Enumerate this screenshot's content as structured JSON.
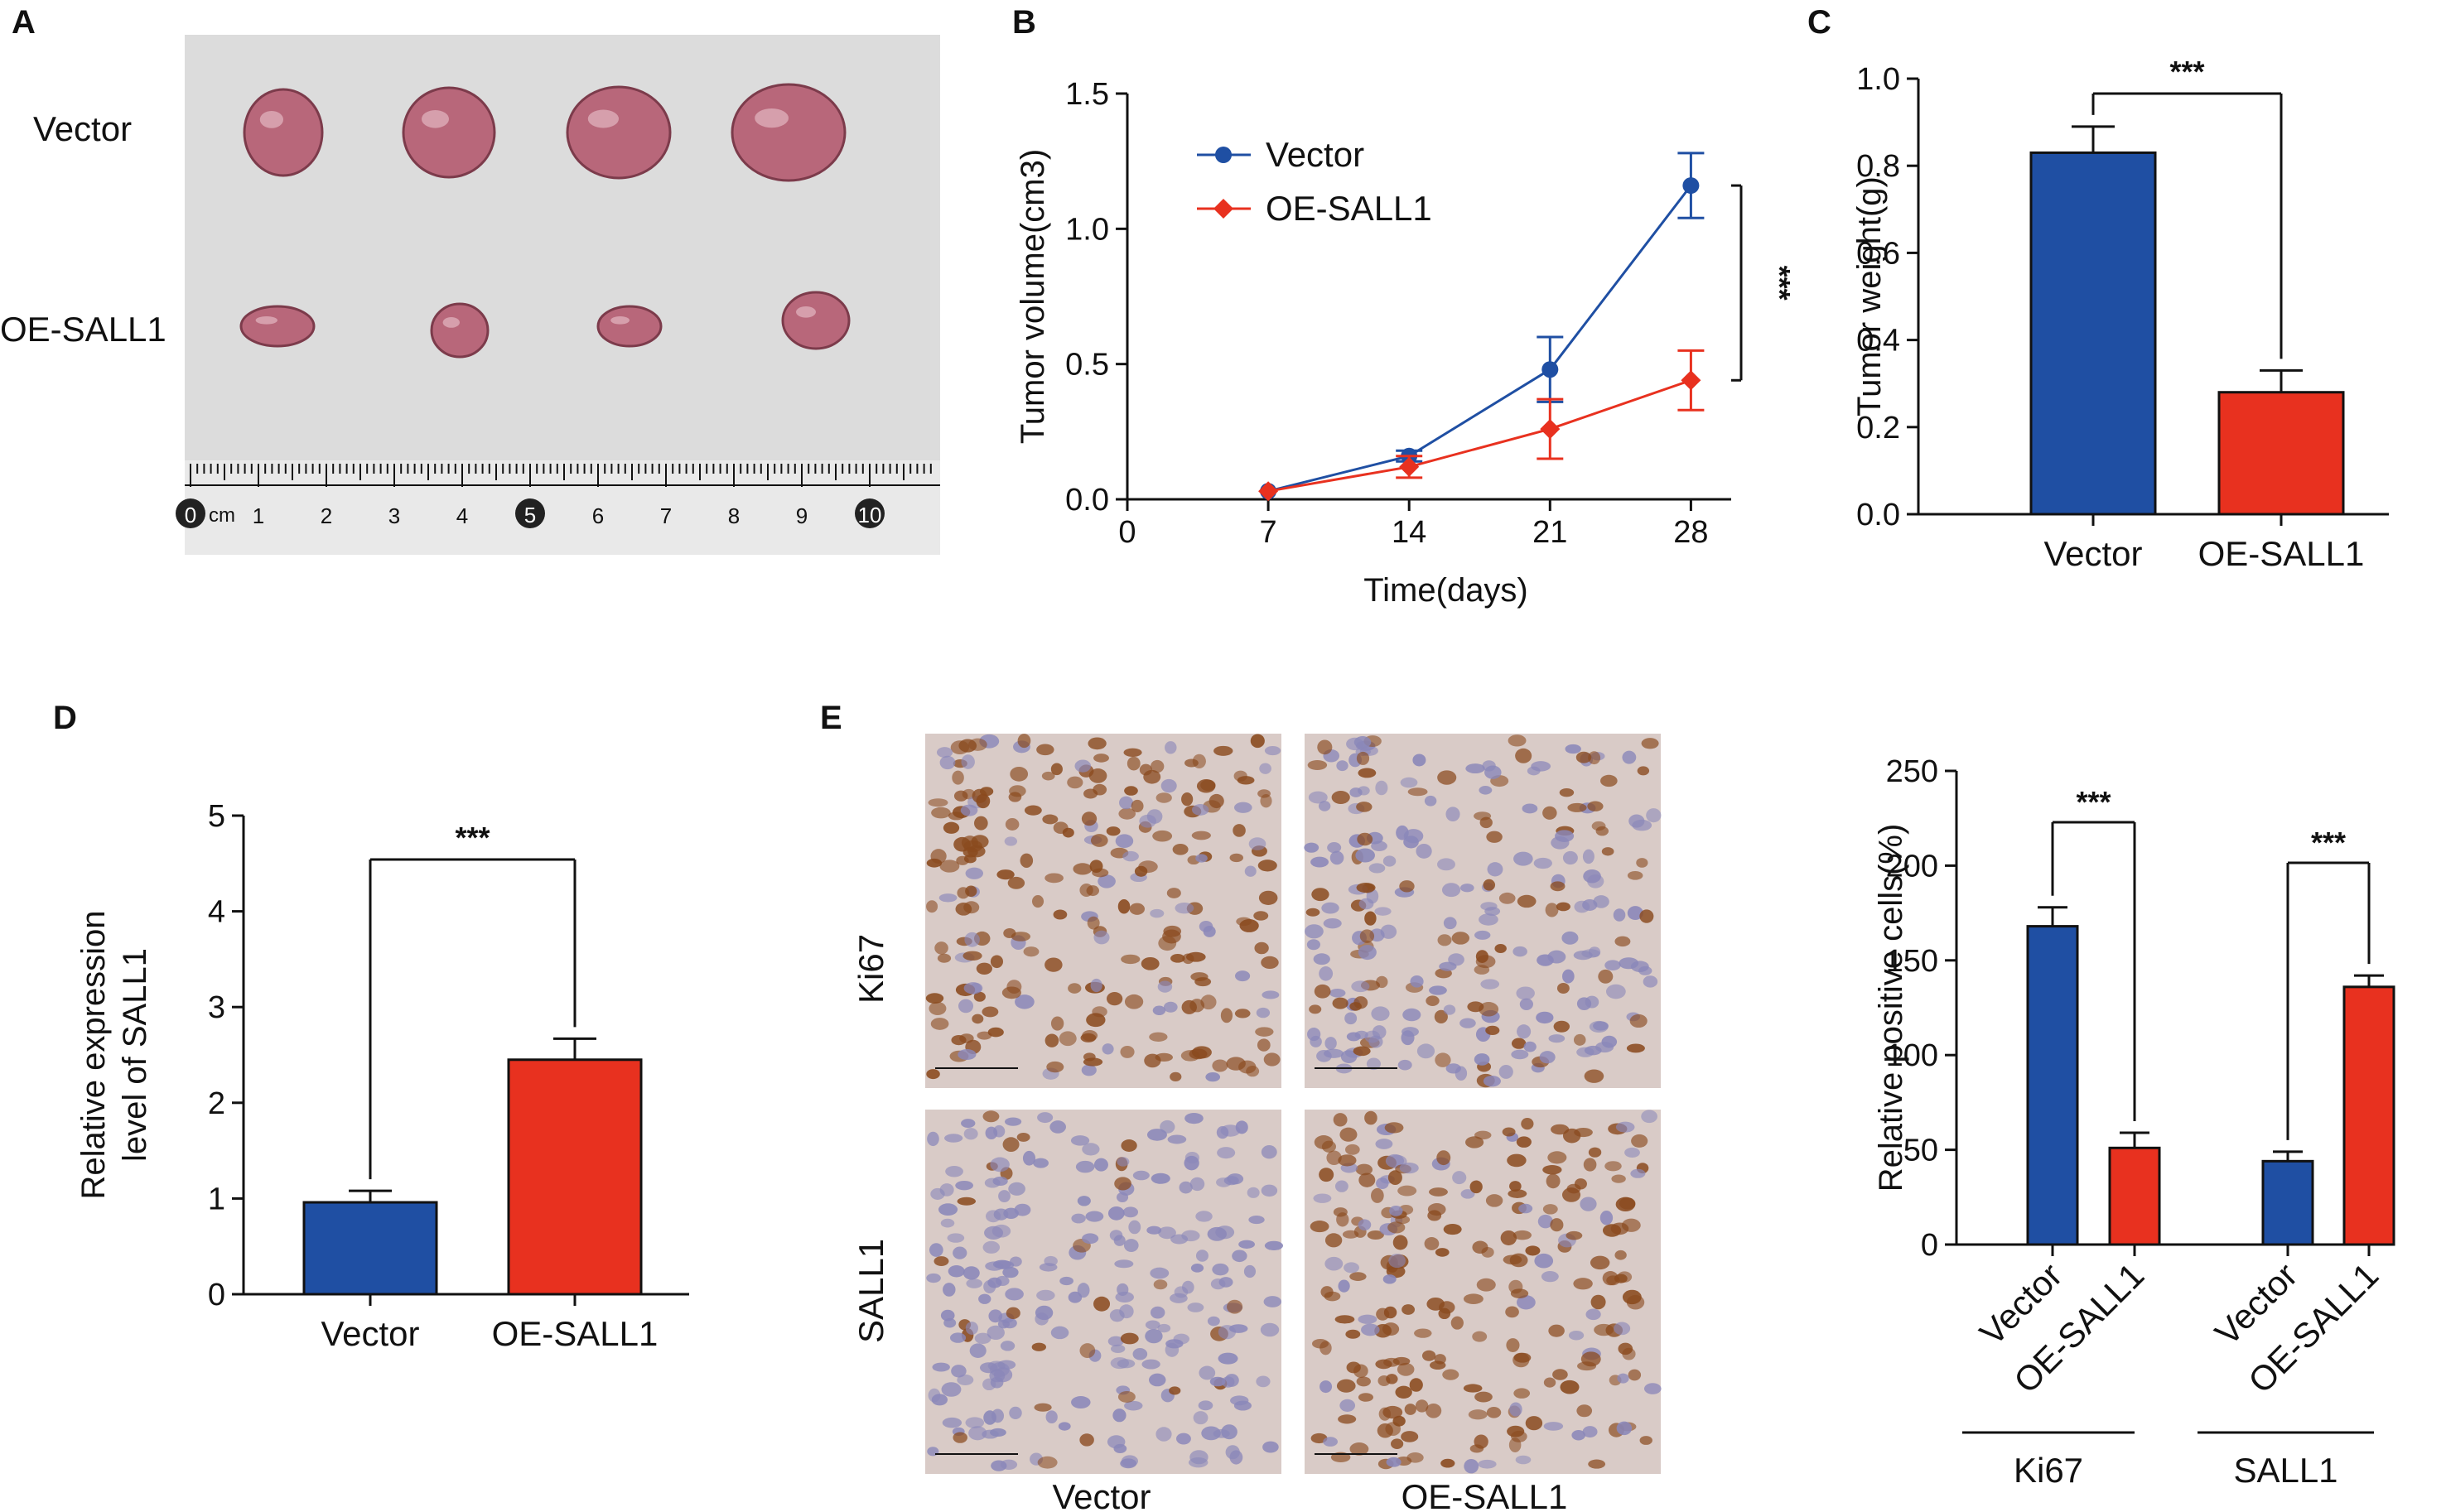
{
  "colors": {
    "vector": "#1f4fa3",
    "oe_sall1": "#e8311f",
    "axis": "#111111",
    "photo_bg": "#dcdcdc",
    "ruler_bg": "#e9e9e9",
    "tumor": "#b8677a",
    "ihc_brown": "#8a4a1e",
    "ihc_blue": "#8a87b9",
    "ihc_bg": "#d9cbc7"
  },
  "panels": {
    "a": {
      "label": "A",
      "row_labels": [
        "Vector",
        "OE-SALL1"
      ],
      "ruler_unit": "cm",
      "ruler_numbers": [
        "0",
        "1",
        "2",
        "3",
        "4",
        "5",
        "6",
        "7",
        "8",
        "9",
        "10",
        "1"
      ]
    },
    "b": {
      "label": "B",
      "significance": "***"
    },
    "c": {
      "label": "C",
      "significance": "***"
    },
    "d": {
      "label": "D",
      "significance": "***"
    },
    "e": {
      "label": "E",
      "stain_labels": [
        "Ki67",
        "SALL1"
      ],
      "group_labels": [
        "Vector",
        "OE-SALL1"
      ],
      "significance": [
        "***",
        "***"
      ]
    }
  },
  "chart_data": [
    {
      "type": "line",
      "panel": "B",
      "xlabel": "Time(days)",
      "ylabel": "Tumor volume(cm3)",
      "xlim": [
        0,
        30
      ],
      "xticks": [
        0,
        7,
        14,
        21,
        28
      ],
      "ylim": [
        0,
        1.5
      ],
      "yticks": [
        "0.0",
        "0.5",
        "1.0",
        "1.5"
      ],
      "legend": "top-left",
      "series": [
        {
          "name": "Vector",
          "marker": "circle",
          "x": [
            7,
            14,
            21,
            28
          ],
          "y": [
            0.03,
            0.16,
            0.48,
            1.16
          ],
          "err": [
            0.01,
            0.02,
            0.12,
            0.12
          ]
        },
        {
          "name": "OE-SALL1",
          "marker": "diamond",
          "x": [
            7,
            14,
            21,
            28
          ],
          "y": [
            0.03,
            0.12,
            0.26,
            0.44
          ],
          "err": [
            0.01,
            0.04,
            0.11,
            0.11
          ]
        }
      ]
    },
    {
      "type": "bar",
      "panel": "C",
      "categories": [
        "Vector",
        "OE-SALL1"
      ],
      "values": [
        0.83,
        0.28
      ],
      "err": [
        0.06,
        0.05
      ],
      "ylabel": "Tumor weight(g)",
      "ylim": [
        0,
        1.0
      ],
      "yticks": [
        "0.0",
        "0.2",
        "0.4",
        "0.6",
        "0.8",
        "1.0"
      ]
    },
    {
      "type": "bar",
      "panel": "D",
      "categories": [
        "Vector",
        "OE-SALL1"
      ],
      "values": [
        0.96,
        2.45
      ],
      "err": [
        0.12,
        0.22
      ],
      "ylabel": [
        "Relative expression",
        "level of SALL1"
      ],
      "ylim": [
        0,
        5
      ],
      "yticks": [
        "0",
        "1",
        "2",
        "3",
        "4",
        "5"
      ]
    },
    {
      "type": "bar",
      "panel": "E",
      "groups": [
        "Ki67",
        "SALL1"
      ],
      "categories": [
        "Vector",
        "OE-SALL1"
      ],
      "series": [
        {
          "name": "Vector",
          "values": [
            168,
            44
          ],
          "err": [
            10,
            5
          ]
        },
        {
          "name": "OE-SALL1",
          "values": [
            51,
            136
          ],
          "err": [
            8,
            6
          ]
        }
      ],
      "ylabel": "Relative positive cells(%)",
      "ylim": [
        0,
        250
      ],
      "yticks": [
        "0",
        "50",
        "100",
        "150",
        "200",
        "250"
      ]
    }
  ]
}
